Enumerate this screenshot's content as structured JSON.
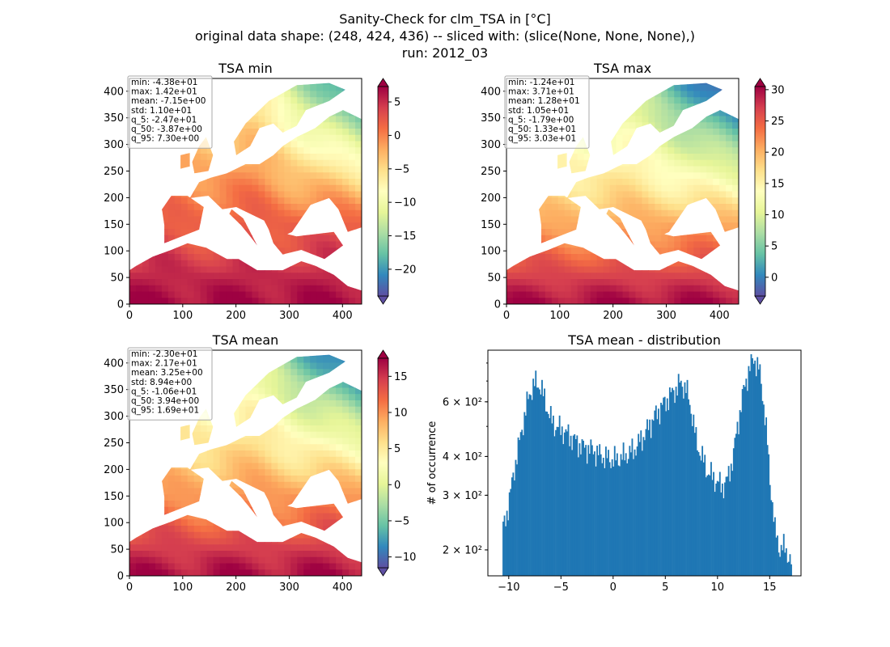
{
  "figure": {
    "title_lines": [
      "Sanity-Check for clm_TSA in [°C]",
      "original data shape: (248, 424, 436) -- sliced with: (slice(None, None, None),)",
      "run: 2012_03"
    ],
    "colormap": [
      "#5e4fa2",
      "#3288bd",
      "#66c2a5",
      "#abdda4",
      "#e6f598",
      "#ffffbf",
      "#fee08b",
      "#fdae61",
      "#f46d43",
      "#d53e4f",
      "#9e0142"
    ]
  },
  "chart_data": [
    {
      "type": "heatmap",
      "title": "TSA min",
      "x_ticks": [
        0,
        100,
        200,
        300,
        400
      ],
      "y_ticks": [
        0,
        50,
        100,
        150,
        200,
        250,
        300,
        350,
        400
      ],
      "xlim": [
        0,
        436
      ],
      "ylim": [
        0,
        424
      ],
      "colorbar": {
        "range": [
          -24,
          7.3
        ],
        "ticks": [
          5,
          0,
          -5,
          -10,
          -15,
          -20
        ],
        "extend": "both"
      },
      "stats": [
        "min: -4.38e+01",
        "max: 1.42e+01",
        "mean: -7.15e+00",
        "std: 1.10e+01",
        "q_5: -2.47e+01",
        "q_50: -3.87e+00",
        "q_95: 7.30e+00"
      ],
      "gradient": {
        "south": 7,
        "mid": 0,
        "north": -8,
        "east_offset": -16
      }
    },
    {
      "type": "heatmap",
      "title": "TSA max",
      "x_ticks": [
        0,
        100,
        200,
        300,
        400
      ],
      "y_ticks": [
        0,
        50,
        100,
        150,
        200,
        250,
        300,
        350,
        400
      ],
      "xlim": [
        0,
        436
      ],
      "ylim": [
        0,
        424
      ],
      "colorbar": {
        "range": [
          -3,
          30.5
        ],
        "ticks": [
          30,
          25,
          20,
          15,
          10,
          5,
          0
        ],
        "extend": "both"
      },
      "stats": [
        "min: -1.24e+01",
        "max: 3.71e+01",
        "mean: 1.28e+01",
        "std: 1.05e+01",
        "q_5: -1.79e+00",
        "q_50: 1.33e+01",
        "q_95: 3.03e+01"
      ],
      "gradient": {
        "south": 30,
        "mid": 17,
        "north": 8,
        "east_offset": -14
      }
    },
    {
      "type": "heatmap",
      "title": "TSA mean",
      "x_ticks": [
        0,
        100,
        200,
        300,
        400
      ],
      "y_ticks": [
        0,
        50,
        100,
        150,
        200,
        250,
        300,
        350,
        400
      ],
      "xlim": [
        0,
        436
      ],
      "ylim": [
        0,
        424
      ],
      "colorbar": {
        "range": [
          -11.5,
          17.5
        ],
        "ticks": [
          15,
          10,
          5,
          0,
          -5,
          -10
        ],
        "extend": "both"
      },
      "stats": [
        "min: -2.30e+01",
        "max: 2.17e+01",
        "mean: 3.25e+00",
        "std: 8.94e+00",
        "q_5: -1.06e+01",
        "q_50: 3.94e+00",
        "q_95: 1.69e+01"
      ],
      "gradient": {
        "south": 17,
        "mid": 7,
        "north": -1,
        "east_offset": -12
      }
    },
    {
      "type": "bar",
      "title": "TSA mean - distribution",
      "ylabel": "# of occurrence",
      "x_ticks": [
        -10,
        -5,
        0,
        5,
        10,
        15
      ],
      "y_log_ticks": [
        {
          "value": 200,
          "label": "2 × 10²"
        },
        {
          "value": 300,
          "label": "3 × 10²"
        },
        {
          "value": 400,
          "label": "4 × 10²"
        },
        {
          "value": 600,
          "label": "6 × 10²"
        }
      ],
      "xlim": [
        -12,
        18
      ],
      "ylim": [
        165,
        880
      ],
      "y_scale": "log",
      "bins": {
        "start": -10.6,
        "end": 17.0,
        "width": 0.12
      },
      "envelope": [
        [
          -10.6,
          230
        ],
        [
          -10.0,
          280
        ],
        [
          -9.5,
          360
        ],
        [
          -9.0,
          440
        ],
        [
          -8.5,
          540
        ],
        [
          -8.0,
          640
        ],
        [
          -7.5,
          690
        ],
        [
          -7.0,
          680
        ],
        [
          -6.5,
          600
        ],
        [
          -6.0,
          530
        ],
        [
          -5.5,
          500
        ],
        [
          -5.0,
          490
        ],
        [
          -4.0,
          460
        ],
        [
          -3.0,
          430
        ],
        [
          -2.0,
          420
        ],
        [
          -1.0,
          400
        ],
        [
          -0.5,
          395
        ],
        [
          0.0,
          390
        ],
        [
          1.0,
          400
        ],
        [
          2.0,
          420
        ],
        [
          3.0,
          470
        ],
        [
          4.0,
          540
        ],
        [
          5.0,
          600
        ],
        [
          6.0,
          660
        ],
        [
          6.5,
          690
        ],
        [
          7.0,
          660
        ],
        [
          7.5,
          560
        ],
        [
          8.0,
          440
        ],
        [
          9.0,
          360
        ],
        [
          10.0,
          330
        ],
        [
          10.5,
          320
        ],
        [
          11.0,
          340
        ],
        [
          11.5,
          400
        ],
        [
          12.0,
          520
        ],
        [
          12.5,
          650
        ],
        [
          13.0,
          760
        ],
        [
          13.5,
          830
        ],
        [
          14.0,
          760
        ],
        [
          14.5,
          560
        ],
        [
          15.0,
          340
        ],
        [
          15.5,
          230
        ],
        [
          16.0,
          200
        ],
        [
          16.5,
          205
        ],
        [
          17.0,
          180
        ]
      ],
      "color": "#1f77b4"
    }
  ]
}
